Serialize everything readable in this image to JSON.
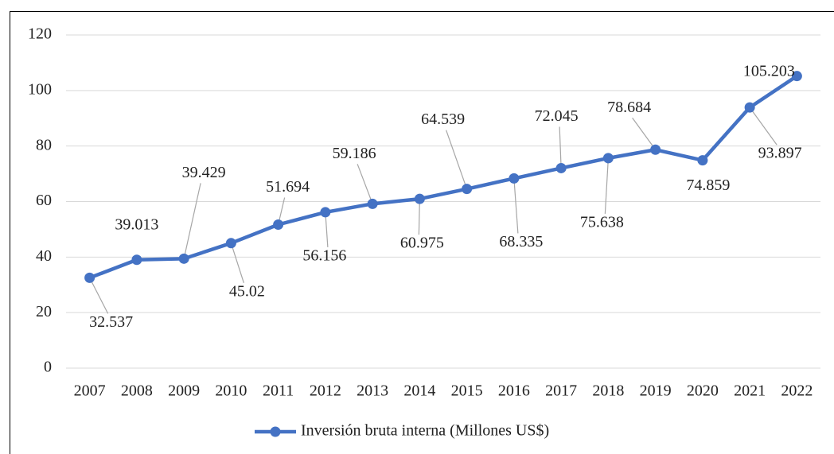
{
  "chart_data": {
    "type": "line",
    "categories": [
      "2007",
      "2008",
      "2009",
      "2010",
      "2011",
      "2012",
      "2013",
      "2014",
      "2015",
      "2016",
      "2017",
      "2018",
      "2019",
      "2020",
      "2021",
      "2022"
    ],
    "series": [
      {
        "name": "Inversión bruta interna  (Millones US$)",
        "color": "#4472c4",
        "values": [
          32.537,
          39.013,
          39.429,
          45.02,
          51.694,
          56.156,
          59.186,
          60.975,
          64.539,
          68.335,
          72.045,
          75.638,
          78.684,
          74.859,
          93.897,
          105.203
        ]
      }
    ],
    "ylim": [
      0,
      120
    ],
    "yticks": [
      0,
      20,
      40,
      60,
      80,
      100,
      120
    ],
    "grid": true,
    "legend": "bottom"
  }
}
